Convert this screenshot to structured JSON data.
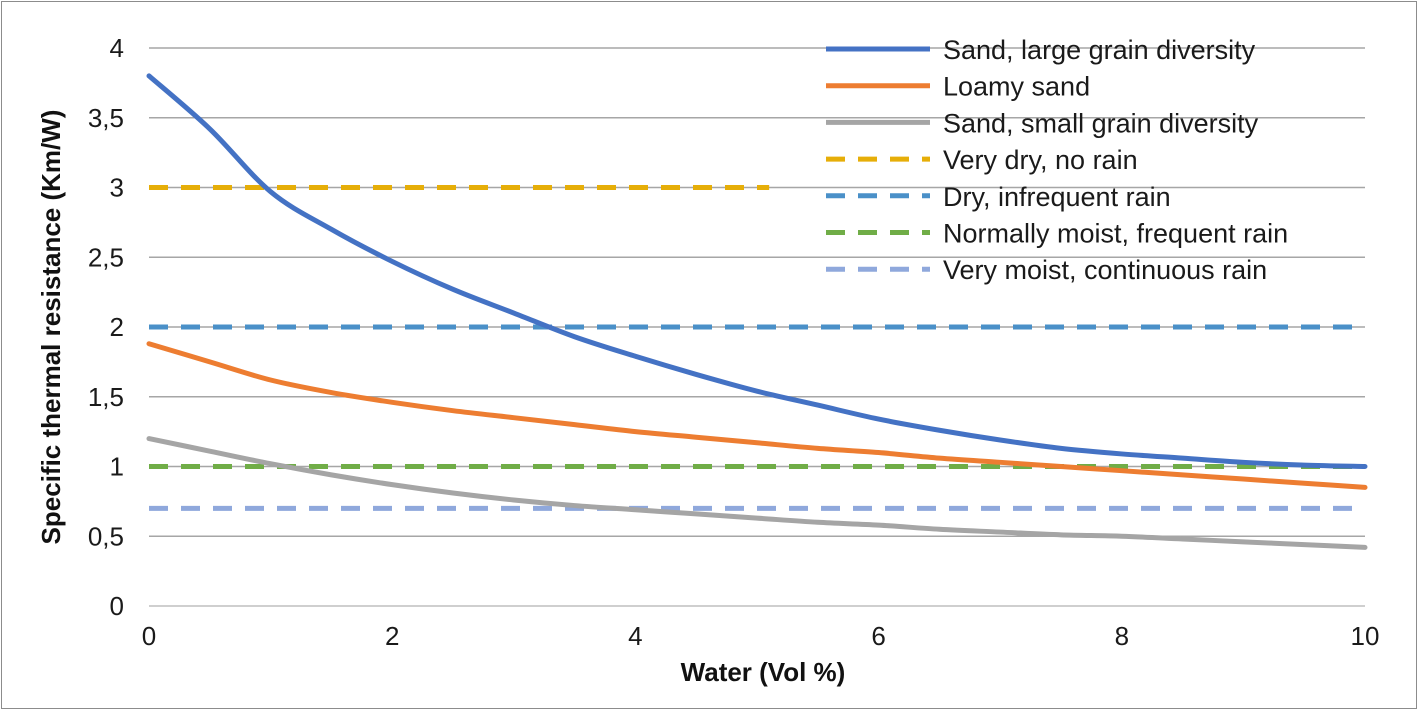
{
  "chart_data": {
    "type": "line",
    "title": "",
    "xlabel": "Water (Vol %)",
    "ylabel": "Specific thermal resistance (Km/W)",
    "xlim": [
      0,
      10
    ],
    "ylim": [
      0,
      4
    ],
    "x_ticks": [
      0,
      2,
      4,
      6,
      8,
      10
    ],
    "x_tick_labels": [
      "0",
      "2",
      "4",
      "6",
      "8",
      "10"
    ],
    "y_ticks": [
      0,
      0.5,
      1,
      1.5,
      2,
      2.5,
      3,
      3.5,
      4
    ],
    "y_tick_labels": [
      "0",
      "0,5",
      "1",
      "1,5",
      "2",
      "2,5",
      "3",
      "3,5",
      "4"
    ],
    "grid": "horizontal",
    "legend_position": "top-right",
    "series": [
      {
        "name": "Sand, large grain diversity",
        "color": "#4472C4",
        "style": "solid",
        "x": [
          0,
          0.5,
          1,
          1.5,
          2,
          2.5,
          3,
          3.5,
          4,
          4.5,
          5,
          5.5,
          6,
          6.5,
          7,
          7.5,
          8,
          8.5,
          9,
          9.5,
          10
        ],
        "y": [
          3.8,
          3.42,
          2.97,
          2.7,
          2.47,
          2.27,
          2.1,
          1.93,
          1.79,
          1.66,
          1.54,
          1.44,
          1.34,
          1.26,
          1.19,
          1.13,
          1.09,
          1.06,
          1.03,
          1.01,
          1.0
        ]
      },
      {
        "name": "Loamy sand",
        "color": "#ED7D31",
        "style": "solid",
        "x": [
          0,
          0.5,
          1,
          1.5,
          2,
          2.5,
          3,
          3.5,
          4,
          4.5,
          5,
          5.5,
          6,
          6.5,
          7,
          7.5,
          8,
          8.5,
          9,
          9.5,
          10
        ],
        "y": [
          1.88,
          1.75,
          1.62,
          1.53,
          1.46,
          1.4,
          1.35,
          1.3,
          1.25,
          1.21,
          1.17,
          1.13,
          1.1,
          1.06,
          1.03,
          1.0,
          0.97,
          0.94,
          0.91,
          0.88,
          0.85
        ]
      },
      {
        "name": "Sand, small grain diversity",
        "color": "#A5A5A5",
        "style": "solid",
        "x": [
          0,
          0.5,
          1,
          1.5,
          2,
          2.5,
          3,
          3.5,
          4,
          4.5,
          5,
          5.5,
          6,
          6.5,
          7,
          7.5,
          8,
          8.5,
          9,
          9.5,
          10
        ],
        "y": [
          1.2,
          1.11,
          1.02,
          0.94,
          0.87,
          0.81,
          0.76,
          0.72,
          0.69,
          0.66,
          0.63,
          0.6,
          0.58,
          0.55,
          0.53,
          0.51,
          0.5,
          0.48,
          0.46,
          0.44,
          0.42
        ]
      },
      {
        "name": "Very dry, no rain",
        "color": "#E6AE08",
        "style": "dashed",
        "x": [
          0,
          5.1
        ],
        "y": [
          3.0,
          3.0
        ]
      },
      {
        "name": "Dry, infrequent rain",
        "color": "#4A90C8",
        "style": "dashed",
        "x": [
          0,
          10
        ],
        "y": [
          2.0,
          2.0
        ]
      },
      {
        "name": "Normally moist, frequent rain",
        "color": "#70AD47",
        "style": "dashed",
        "x": [
          0,
          10
        ],
        "y": [
          1.0,
          1.0
        ]
      },
      {
        "name": "Very moist, continuous rain",
        "color": "#8FA8DC",
        "style": "dashed",
        "x": [
          0,
          10
        ],
        "y": [
          0.7,
          0.7
        ]
      }
    ]
  }
}
